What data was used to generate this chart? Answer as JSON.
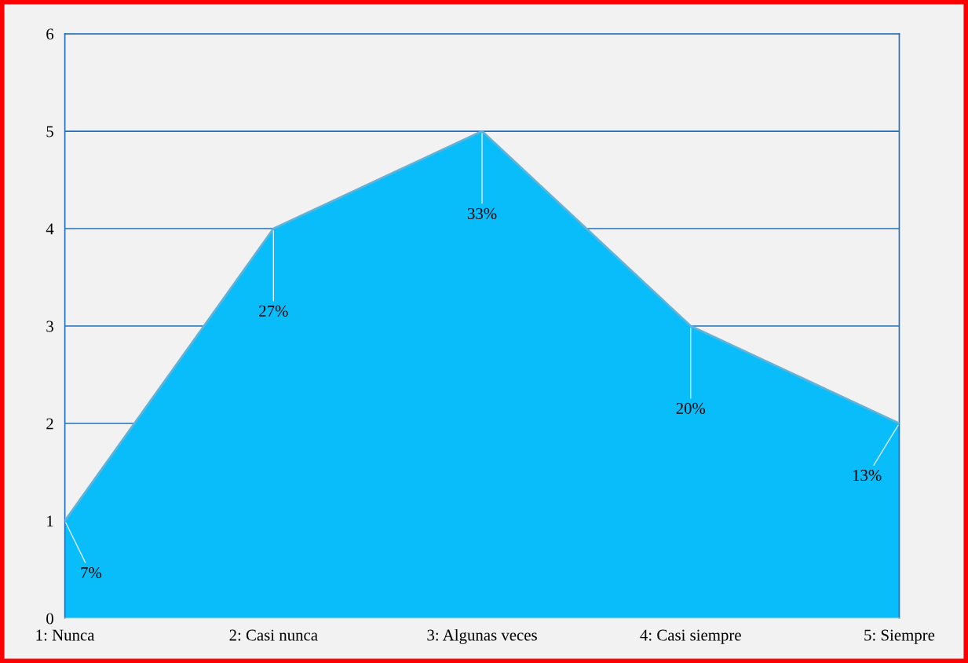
{
  "chart_data": {
    "type": "area",
    "categories": [
      "1: Nunca",
      "2: Casi nunca",
      "3: Algunas veces",
      "4: Casi siempre",
      "5: Siempre"
    ],
    "series": [
      {
        "color": "#08bdfa",
        "values": [
          1,
          4,
          5,
          3,
          2
        ]
      }
    ],
    "annotations": [
      {
        "text": "7%",
        "x": "1: Nunca",
        "y": 1
      },
      {
        "text": "27%",
        "x": "2: Casi nunca",
        "y": 4
      },
      {
        "text": "33%",
        "x": "3: Algunas veces",
        "y": 5
      },
      {
        "text": "20%",
        "x": "4: Casi siempre",
        "y": 3
      },
      {
        "text": "13%",
        "x": "5: Siempre",
        "y": 2
      }
    ],
    "ylim": [
      0,
      6
    ],
    "yticks": [
      0,
      1,
      2,
      3,
      4,
      5,
      6
    ],
    "grid": "y",
    "legend": false
  }
}
